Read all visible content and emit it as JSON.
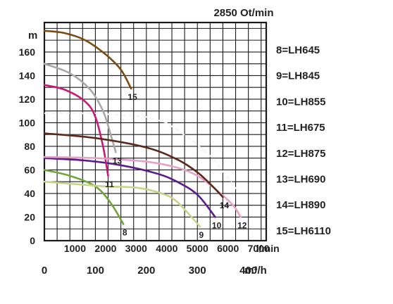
{
  "chart_data": {
    "type": "line",
    "title": "2850 Ot/min",
    "y_unit": "m",
    "x_unit_top": "l/min",
    "x_unit_bottom": "m³/h",
    "ylim": [
      0,
      185
    ],
    "xlim_m3h": [
      0,
      435
    ],
    "grid": true,
    "legend_position": "right",
    "y_ticks": [
      "0",
      "20",
      "40",
      "60",
      "80",
      "100",
      "120",
      "140",
      "160"
    ],
    "x_ticks_lmin": [
      "1000",
      "2000",
      "3000",
      "4000",
      "5000",
      "6000",
      "7000"
    ],
    "x_ticks_m3h": [
      "0",
      "100",
      "200",
      "300",
      "400"
    ],
    "series": [
      {
        "name": "8=LH645",
        "curve_label": "8",
        "color": "#6fa53a",
        "x": [
          0,
          50,
          100,
          130,
          155
        ],
        "y": [
          60,
          55,
          46,
          32,
          14
        ]
      },
      {
        "name": "9=LH845",
        "curve_label": "9",
        "color": "#c3d68a",
        "x": [
          0,
          60,
          120,
          180,
          230,
          260,
          305
        ],
        "y": [
          50,
          48,
          46,
          45,
          40,
          33,
          12
        ]
      },
      {
        "name": "10=LH855",
        "curve_label": "10",
        "color": "#5a1e8a",
        "x": [
          0,
          80,
          150,
          220,
          260,
          300,
          335
        ],
        "y": [
          70,
          68,
          64,
          57,
          50,
          39,
          20
        ]
      },
      {
        "name": "11=LH675",
        "curve_label": "11",
        "color": "#c8197a",
        "x": [
          0,
          40,
          80,
          100,
          115,
          125
        ],
        "y": [
          132,
          128,
          118,
          105,
          80,
          55
        ]
      },
      {
        "name": "12=LH875",
        "curve_label": "12",
        "color": "#e6a2c6",
        "x": [
          0,
          100,
          200,
          260,
          300,
          340,
          370,
          385
        ],
        "y": [
          71,
          70,
          67,
          62,
          55,
          42,
          30,
          20
        ]
      },
      {
        "name": "13=LH690",
        "curve_label": "13",
        "color": "#a8a8a8",
        "x": [
          0,
          50,
          90,
          115,
          130,
          140
        ],
        "y": [
          150,
          142,
          128,
          110,
          90,
          75
        ]
      },
      {
        "name": "14=LH890",
        "curve_label": "14",
        "color": "#5b2a1a",
        "x": [
          0,
          100,
          200,
          260,
          300,
          330,
          350
        ],
        "y": [
          91,
          87,
          79,
          69,
          58,
          46,
          37
        ]
      },
      {
        "name": "15=LH6110",
        "curve_label": "15",
        "color": "#7b4a10",
        "x": [
          0,
          40,
          80,
          120,
          150,
          170
        ],
        "y": [
          178,
          176,
          170,
          158,
          145,
          129
        ]
      }
    ],
    "reference_curve": {
      "color": "#f4f4f4",
      "x": [
        0,
        100,
        200,
        240,
        290,
        330,
        380
      ],
      "y": [
        108,
        108,
        105,
        100,
        85,
        70,
        42
      ]
    }
  }
}
